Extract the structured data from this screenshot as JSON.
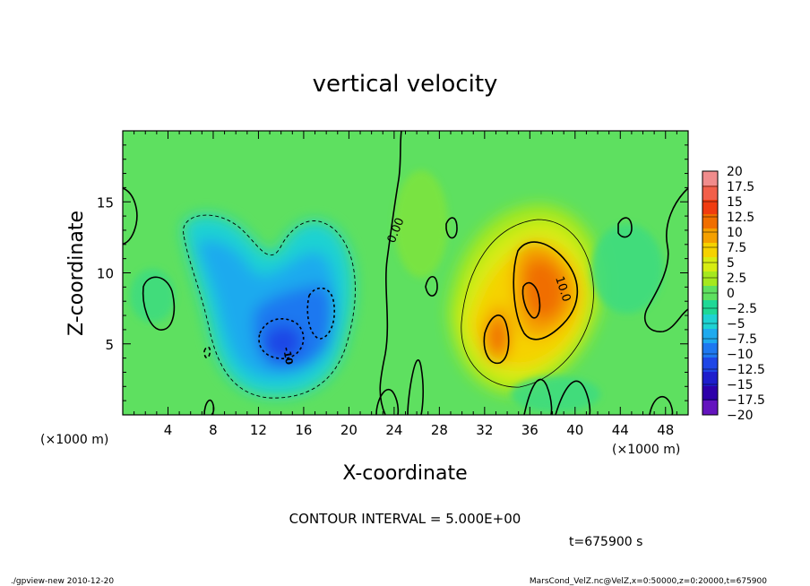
{
  "chart_data": {
    "type": "heatmap",
    "title": "vertical velocity",
    "xlabel": "X-coordinate",
    "ylabel": "Z-coordinate",
    "x_unit_note_left": "(×1000 m)",
    "x_unit_note_right": "(×1000 m)",
    "xlim": [
      0,
      50
    ],
    "ylim": [
      0,
      20
    ],
    "x_ticks": [
      4,
      8,
      12,
      16,
      20,
      24,
      28,
      32,
      36,
      40,
      44,
      48
    ],
    "y_ticks": [
      5,
      10,
      15
    ],
    "contour_interval_label": "CONTOUR INTERVAL = 5.000E+00",
    "time_label": "t=675900 s",
    "contour_labels": [
      "0.00",
      "10.0",
      "-10"
    ],
    "colorbar": {
      "labels": [
        "20",
        "17.5",
        "15",
        "12.5",
        "10",
        "7.5",
        "5",
        "2.5",
        "0",
        "−2.5",
        "−5",
        "−7.5",
        "−10",
        "−12.5",
        "−15",
        "−17.5",
        "−20"
      ],
      "colors": [
        "#f08c8c",
        "#f25f4a",
        "#f03c10",
        "#f06e00",
        "#f4a000",
        "#f5d200",
        "#d7ec12",
        "#a5e81e",
        "#5ee060",
        "#1ed896",
        "#1ed2d2",
        "#1eaaee",
        "#1e78f0",
        "#1e46e6",
        "#1e1ecc",
        "#2d00aa",
        "#6414be"
      ]
    },
    "features": [
      {
        "kind": "downdraft",
        "x_range": [
          4,
          22
        ],
        "z_range": [
          2,
          14
        ],
        "min_value": -10
      },
      {
        "kind": "updraft",
        "x_range": [
          30,
          42
        ],
        "z_range": [
          2,
          14
        ],
        "max_value": 12.5
      }
    ]
  },
  "footer": {
    "left": "./gpview-new   2010-12-20",
    "right": "MarsCond_VelZ.nc@VelZ,x=0:50000,z=0:20000,t=675900"
  }
}
